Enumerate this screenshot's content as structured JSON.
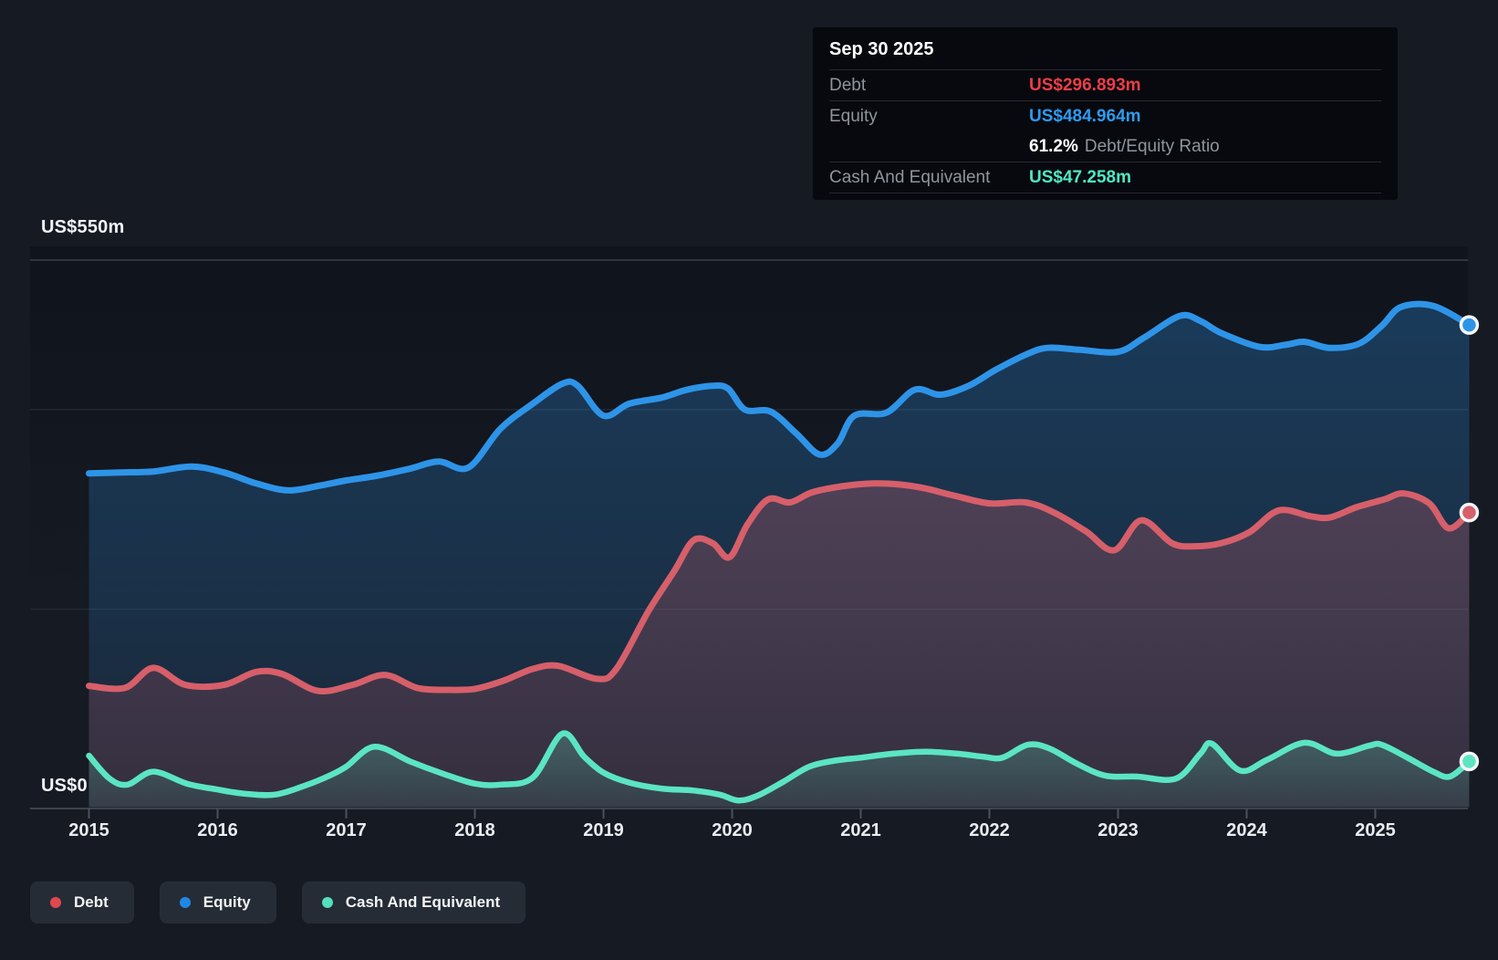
{
  "axis": {
    "y_top_label": "US$550m",
    "y_zero_label": "US$0",
    "years": [
      2015,
      2016,
      2017,
      2018,
      2019,
      2020,
      2021,
      2022,
      2023,
      2024,
      2025
    ]
  },
  "tooltip": {
    "date": "Sep 30 2025",
    "debt_label": "Debt",
    "debt_value": "US$296.893m",
    "equity_label": "Equity",
    "equity_value": "US$484.964m",
    "ratio_value": "61.2%",
    "ratio_label": "Debt/Equity Ratio",
    "cash_label": "Cash And Equivalent",
    "cash_value": "US$47.258m"
  },
  "legend": {
    "items": [
      {
        "label": "Debt",
        "color": "#e0484f"
      },
      {
        "label": "Equity",
        "color": "#1f88e5"
      },
      {
        "label": "Cash And Equivalent",
        "color": "#54dfbd"
      }
    ]
  },
  "colors": {
    "background": "#161a23",
    "debt_line": "#d65f6a",
    "equity_line": "#2e94e8",
    "cash_line": "#5be5c3",
    "debt_accent": "#ee3d47",
    "equity_accent": "#2e9bf0",
    "cash_accent": "#4fe8c4",
    "gridline_major": "#39414d",
    "gridline_minor": "#232b36",
    "axis_line": "#3c434c"
  },
  "chart_data": {
    "type": "area",
    "x_unit": "year",
    "x_range": [
      2015,
      2025.75
    ],
    "ylim": [
      0,
      550
    ],
    "y_tick_labels": [
      "US$0",
      "US$550m"
    ],
    "gridline_values": [
      550,
      400,
      200,
      0
    ],
    "grid": true,
    "legend_position": "bottom-left",
    "last_point_date": "Sep 30 2025",
    "debt_equity_ratio": "61.2%",
    "series": [
      {
        "name": "Equity",
        "final_value_label": "US$484.964m",
        "points": [
          [
            2015.0,
            336
          ],
          [
            2015.25,
            337
          ],
          [
            2015.5,
            338
          ],
          [
            2015.8,
            343
          ],
          [
            2016.05,
            337
          ],
          [
            2016.3,
            326
          ],
          [
            2016.55,
            319
          ],
          [
            2016.8,
            324
          ],
          [
            2017.0,
            329
          ],
          [
            2017.25,
            334
          ],
          [
            2017.5,
            341
          ],
          [
            2017.72,
            348
          ],
          [
            2017.95,
            342
          ],
          [
            2018.2,
            381
          ],
          [
            2018.45,
            406
          ],
          [
            2018.68,
            426
          ],
          [
            2018.8,
            424
          ],
          [
            2019.0,
            394
          ],
          [
            2019.2,
            406
          ],
          [
            2019.45,
            412
          ],
          [
            2019.65,
            420
          ],
          [
            2019.85,
            424
          ],
          [
            2019.97,
            421
          ],
          [
            2020.1,
            400
          ],
          [
            2020.3,
            398
          ],
          [
            2020.5,
            376
          ],
          [
            2020.68,
            355
          ],
          [
            2020.82,
            366
          ],
          [
            2020.95,
            394
          ],
          [
            2021.2,
            397
          ],
          [
            2021.42,
            420
          ],
          [
            2021.62,
            415
          ],
          [
            2021.84,
            424
          ],
          [
            2022.05,
            440
          ],
          [
            2022.28,
            455
          ],
          [
            2022.45,
            462
          ],
          [
            2022.7,
            460
          ],
          [
            2023.0,
            458
          ],
          [
            2023.2,
            472
          ],
          [
            2023.48,
            494
          ],
          [
            2023.64,
            489
          ],
          [
            2023.8,
            477
          ],
          [
            2024.1,
            463
          ],
          [
            2024.3,
            465
          ],
          [
            2024.45,
            468
          ],
          [
            2024.64,
            462
          ],
          [
            2024.87,
            466
          ],
          [
            2025.05,
            484
          ],
          [
            2025.2,
            503
          ],
          [
            2025.45,
            504
          ],
          [
            2025.73,
            484.964
          ]
        ]
      },
      {
        "name": "Debt",
        "final_value_label": "US$296.893m",
        "points": [
          [
            2015.0,
            123
          ],
          [
            2015.28,
            121
          ],
          [
            2015.5,
            141
          ],
          [
            2015.75,
            124
          ],
          [
            2016.05,
            124
          ],
          [
            2016.3,
            137
          ],
          [
            2016.5,
            135
          ],
          [
            2016.78,
            118
          ],
          [
            2017.05,
            124
          ],
          [
            2017.3,
            134
          ],
          [
            2017.55,
            121
          ],
          [
            2017.78,
            119
          ],
          [
            2018.0,
            120
          ],
          [
            2018.22,
            128
          ],
          [
            2018.45,
            140
          ],
          [
            2018.65,
            143
          ],
          [
            2018.95,
            130
          ],
          [
            2019.1,
            140
          ],
          [
            2019.35,
            198
          ],
          [
            2019.55,
            238
          ],
          [
            2019.7,
            269
          ],
          [
            2019.85,
            266
          ],
          [
            2019.98,
            252
          ],
          [
            2020.12,
            285
          ],
          [
            2020.28,
            310
          ],
          [
            2020.45,
            307
          ],
          [
            2020.62,
            317
          ],
          [
            2020.85,
            323
          ],
          [
            2021.1,
            326
          ],
          [
            2021.3,
            325
          ],
          [
            2021.5,
            321
          ],
          [
            2021.72,
            314
          ],
          [
            2022.0,
            306
          ],
          [
            2022.28,
            307
          ],
          [
            2022.5,
            297
          ],
          [
            2022.75,
            278
          ],
          [
            2022.97,
            259
          ],
          [
            2023.18,
            289
          ],
          [
            2023.42,
            266
          ],
          [
            2023.6,
            263
          ],
          [
            2023.8,
            266
          ],
          [
            2024.02,
            277
          ],
          [
            2024.25,
            299
          ],
          [
            2024.5,
            293
          ],
          [
            2024.65,
            292
          ],
          [
            2024.85,
            302
          ],
          [
            2025.07,
            310
          ],
          [
            2025.22,
            316
          ],
          [
            2025.42,
            306
          ],
          [
            2025.57,
            281
          ],
          [
            2025.73,
            296.893
          ]
        ]
      },
      {
        "name": "Cash And Equivalent",
        "final_value_label": "US$47.258m",
        "points": [
          [
            2015.0,
            53
          ],
          [
            2015.16,
            30
          ],
          [
            2015.3,
            24
          ],
          [
            2015.5,
            37
          ],
          [
            2015.76,
            25
          ],
          [
            2016.0,
            19
          ],
          [
            2016.2,
            15
          ],
          [
            2016.45,
            14
          ],
          [
            2016.7,
            24
          ],
          [
            2016.87,
            33
          ],
          [
            2017.0,
            42
          ],
          [
            2017.22,
            62
          ],
          [
            2017.5,
            47
          ],
          [
            2017.75,
            35
          ],
          [
            2018.0,
            25
          ],
          [
            2018.2,
            24
          ],
          [
            2018.45,
            31
          ],
          [
            2018.68,
            75
          ],
          [
            2018.85,
            52
          ],
          [
            2019.0,
            36
          ],
          [
            2019.2,
            26
          ],
          [
            2019.45,
            20
          ],
          [
            2019.7,
            18
          ],
          [
            2019.9,
            14
          ],
          [
            2020.05,
            8
          ],
          [
            2020.2,
            13
          ],
          [
            2020.4,
            27
          ],
          [
            2020.6,
            42
          ],
          [
            2020.8,
            48
          ],
          [
            2021.0,
            51
          ],
          [
            2021.25,
            55
          ],
          [
            2021.5,
            57
          ],
          [
            2021.75,
            55
          ],
          [
            2021.95,
            52
          ],
          [
            2022.1,
            51
          ],
          [
            2022.3,
            64
          ],
          [
            2022.47,
            60
          ],
          [
            2022.68,
            45
          ],
          [
            2022.9,
            33
          ],
          [
            2023.15,
            32
          ],
          [
            2023.45,
            30
          ],
          [
            2023.64,
            55
          ],
          [
            2023.73,
            65
          ],
          [
            2023.95,
            38
          ],
          [
            2024.16,
            49
          ],
          [
            2024.45,
            66
          ],
          [
            2024.7,
            55
          ],
          [
            2024.95,
            63
          ],
          [
            2025.05,
            64
          ],
          [
            2025.25,
            51
          ],
          [
            2025.45,
            37
          ],
          [
            2025.58,
            32
          ],
          [
            2025.73,
            47.258
          ]
        ]
      }
    ]
  }
}
